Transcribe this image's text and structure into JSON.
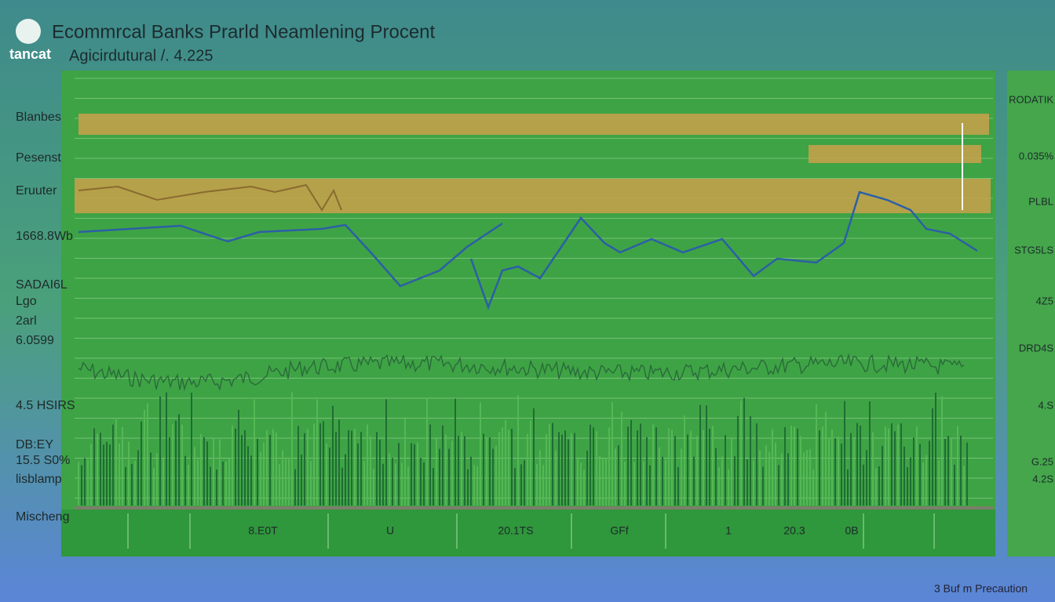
{
  "header": {
    "logo": "tancat",
    "title": "Ecommrcal Banks Prarld Neamlening Procent",
    "subtitle": "Agicirdutural /. 4.225"
  },
  "left_labels": [
    "Blanbes",
    "Pesenst",
    "Eruuter",
    "1668.8Wb",
    "SADAI6L",
    "Lgo",
    "2arl",
    "6.0599",
    "4.5 HSIRS",
    "DB:EY",
    "15.5 S0%",
    "lisblamp",
    "Mischeng"
  ],
  "right_labels": [
    "RODATIK",
    "0.035%",
    "PLBL",
    "STG5LS",
    "4Z5",
    "DRD4S",
    "4.S",
    "G.25",
    "4.2S"
  ],
  "x_labels": [
    "8.E0T",
    "U",
    "20.1TS",
    "GFf",
    "1",
    "20.3",
    "0B"
  ],
  "footer": "3 Buf m Precaution"
}
